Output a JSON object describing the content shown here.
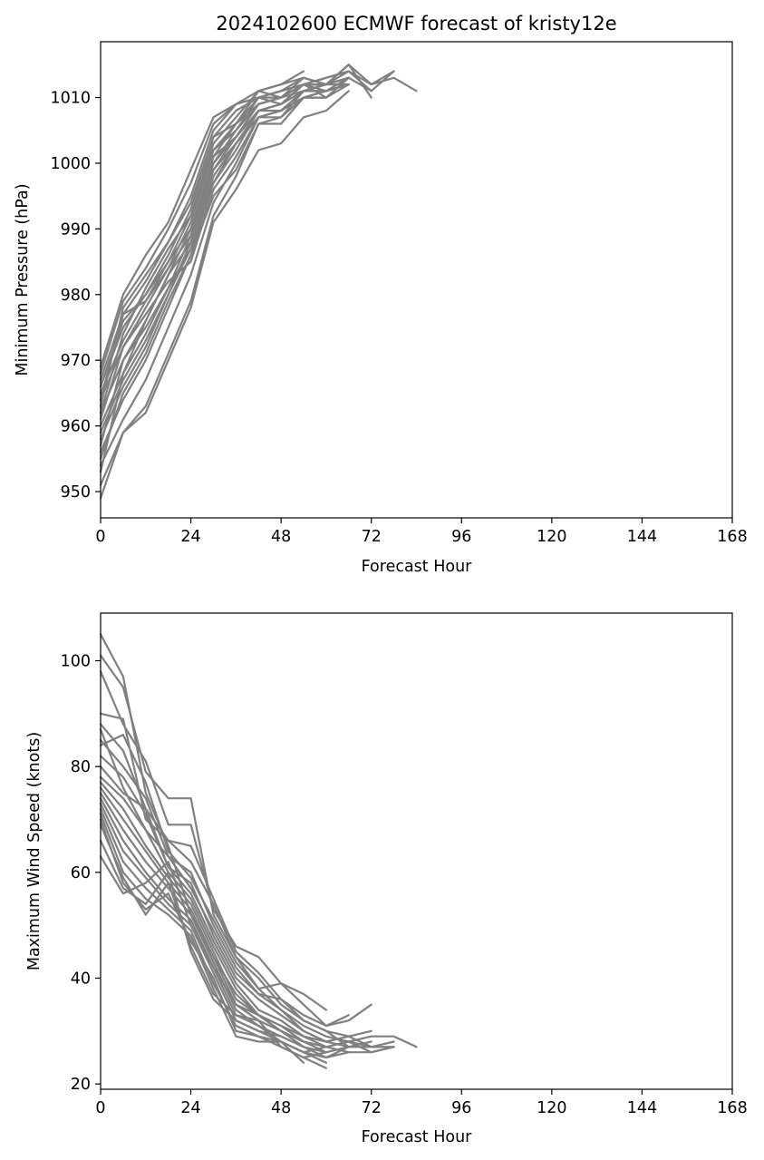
{
  "figure": {
    "title": "2024102600 ECMWF forecast of kristy12e"
  },
  "chart_data": [
    {
      "type": "line",
      "title": "2024102600 ECMWF forecast of kristy12e",
      "xlabel": "Forecast Hour",
      "ylabel": "Minimum Pressure (hPa)",
      "xlim": [
        0,
        168
      ],
      "ylim": [
        946,
        1018.5
      ],
      "xticks": [
        0,
        24,
        48,
        72,
        96,
        120,
        144,
        168
      ],
      "yticks": [
        950,
        960,
        970,
        980,
        990,
        1000,
        1010
      ],
      "grid": false,
      "legend": "none",
      "line_color": "#808080",
      "x": [
        0,
        6,
        12,
        18,
        24,
        30,
        36,
        42,
        48,
        54,
        60,
        66,
        72,
        78,
        84
      ],
      "series": [
        {
          "values": [
            949,
            959,
            962,
            970,
            978,
            991,
            996,
            1002,
            1003,
            1007,
            1008,
            1011,
            null,
            null,
            null
          ]
        },
        {
          "values": [
            951,
            959,
            963,
            971,
            979,
            992,
            998,
            1006,
            1006,
            1010,
            1010,
            1013,
            1011,
            1014,
            null
          ]
        },
        {
          "values": [
            954,
            961,
            967,
            975,
            983,
            994,
            1000,
            1007,
            1008,
            1011,
            1012,
            1014,
            1012,
            1013,
            1011
          ]
        },
        {
          "values": [
            956,
            964,
            970,
            978,
            986,
            997,
            1002,
            1008,
            1009,
            1012,
            1012,
            1015,
            1012,
            1014,
            null
          ]
        },
        {
          "values": [
            958,
            966,
            972,
            980,
            988,
            999,
            1004,
            1009,
            1010,
            1012,
            1013,
            1014,
            1011,
            null,
            null
          ]
        },
        {
          "values": [
            960,
            968,
            974,
            981,
            989,
            1000,
            1005,
            1010,
            1011,
            1013,
            1012,
            1015,
            1010,
            null,
            null
          ]
        },
        {
          "values": [
            962,
            970,
            976,
            983,
            990,
            1001,
            1006,
            1010,
            1011,
            1012,
            1013,
            1014,
            null,
            null,
            null
          ]
        },
        {
          "values": [
            964,
            972,
            978,
            984,
            991,
            1002,
            1006,
            1011,
            1012,
            1013,
            1012,
            1013,
            null,
            null,
            null
          ]
        },
        {
          "values": [
            965,
            973,
            979,
            985,
            992,
            1003,
            1007,
            1011,
            1012,
            1014,
            null,
            null,
            null,
            null,
            null
          ]
        },
        {
          "values": [
            966,
            975,
            980,
            986,
            993,
            1004,
            1008,
            1010,
            1011,
            1012,
            1012,
            1013,
            null,
            null,
            null
          ]
        },
        {
          "values": [
            967,
            977,
            982,
            988,
            995,
            1005,
            1009,
            1010,
            1010,
            1012,
            1011,
            1012,
            null,
            null,
            null
          ]
        },
        {
          "values": [
            968,
            979,
            984,
            990,
            997,
            1006,
            1009,
            1010,
            1009,
            1011,
            1011,
            1012,
            null,
            null,
            null
          ]
        },
        {
          "values": [
            969,
            980,
            986,
            991,
            999,
            1007,
            1009,
            1011,
            1010,
            1012,
            1012,
            1013,
            null,
            null,
            null
          ]
        },
        {
          "values": [
            963,
            978,
            983,
            988,
            994,
            1004,
            1006,
            1009,
            1010,
            1011,
            1011,
            1012,
            null,
            null,
            null
          ]
        },
        {
          "values": [
            957,
            970,
            975,
            981,
            987,
            998,
            1003,
            1008,
            1009,
            1011,
            1012,
            1013,
            null,
            null,
            null
          ]
        },
        {
          "values": [
            961,
            972,
            977,
            982,
            985,
            996,
            1001,
            1007,
            1008,
            1010,
            1011,
            null,
            null,
            null,
            null
          ]
        },
        {
          "values": [
            959,
            967,
            973,
            980,
            987,
            997,
            1003,
            1007,
            1007,
            1010,
            1011,
            1013,
            null,
            null,
            null
          ]
        },
        {
          "values": [
            955,
            965,
            971,
            979,
            986,
            995,
            999,
            1006,
            1007,
            1011,
            1011,
            1012,
            null,
            null,
            null
          ]
        },
        {
          "values": [
            966,
            976,
            980,
            985,
            990,
            1000,
            1004,
            1008,
            1008,
            1011,
            1012,
            1012,
            null,
            null,
            null
          ]
        },
        {
          "values": [
            962,
            974,
            981,
            987,
            992,
            1002,
            1005,
            1009,
            1010,
            1013,
            null,
            null,
            null,
            null,
            null
          ]
        },
        {
          "values": [
            964,
            977,
            979,
            984,
            989,
            1001,
            1004,
            1008,
            1009,
            1012,
            1010,
            null,
            null,
            null,
            null
          ]
        },
        {
          "values": [
            953,
            968,
            976,
            983,
            988,
            999,
            1003,
            1007,
            1008,
            1010,
            1010,
            1012,
            null,
            null,
            null
          ]
        }
      ]
    },
    {
      "type": "line",
      "title": "",
      "xlabel": "Forecast Hour",
      "ylabel": "Maximum Wind Speed (knots)",
      "xlim": [
        0,
        168
      ],
      "ylim": [
        19,
        109
      ],
      "xticks": [
        0,
        24,
        48,
        72,
        96,
        120,
        144,
        168
      ],
      "yticks": [
        20,
        40,
        60,
        80,
        100
      ],
      "grid": false,
      "legend": "none",
      "line_color": "#808080",
      "x": [
        0,
        6,
        12,
        18,
        24,
        30,
        36,
        42,
        48,
        54,
        60,
        66,
        72,
        78,
        84
      ],
      "series": [
        {
          "values": [
            105,
            97,
            75,
            65,
            52,
            44,
            37,
            33,
            30,
            28,
            27,
            28,
            29,
            29,
            27
          ]
        },
        {
          "values": [
            101,
            95,
            79,
            74,
            74,
            52,
            44,
            40,
            35,
            32,
            30,
            29,
            30,
            null,
            null
          ]
        },
        {
          "values": [
            98,
            88,
            81,
            69,
            69,
            53,
            46,
            44,
            39,
            37,
            34,
            null,
            null,
            null,
            null
          ]
        },
        {
          "values": [
            90,
            89,
            70,
            66,
            65,
            55,
            45,
            41,
            36,
            33,
            31,
            33,
            null,
            null,
            null
          ]
        },
        {
          "values": [
            88,
            83,
            72,
            66,
            62,
            54,
            44,
            38,
            39,
            35,
            31,
            32,
            35,
            null,
            null
          ]
        },
        {
          "values": [
            87,
            76,
            68,
            63,
            60,
            50,
            42,
            37,
            36,
            32,
            30,
            27,
            28,
            null,
            null
          ]
        },
        {
          "values": [
            85,
            80,
            74,
            63,
            57,
            49,
            41,
            37,
            34,
            31,
            29,
            28,
            27,
            27,
            null
          ]
        },
        {
          "values": [
            82,
            78,
            71,
            61,
            58,
            48,
            40,
            36,
            33,
            30,
            28,
            29,
            27,
            28,
            null
          ]
        },
        {
          "values": [
            80,
            75,
            72,
            61,
            56,
            47,
            39,
            34,
            32,
            29,
            27,
            28,
            26,
            27,
            null
          ]
        },
        {
          "values": [
            78,
            74,
            68,
            60,
            55,
            46,
            38,
            33,
            31,
            28,
            26,
            27,
            27,
            27,
            null
          ]
        },
        {
          "values": [
            77,
            72,
            65,
            59,
            54,
            45,
            36,
            33,
            30,
            28,
            27,
            26,
            26,
            27,
            null
          ]
        },
        {
          "values": [
            76,
            70,
            64,
            58,
            53,
            44,
            35,
            32,
            30,
            27,
            26,
            27,
            null,
            null,
            null
          ]
        },
        {
          "values": [
            75,
            68,
            62,
            57,
            52,
            43,
            34,
            31,
            29,
            27,
            25,
            27,
            null,
            null,
            null
          ]
        },
        {
          "values": [
            74,
            66,
            60,
            55,
            51,
            42,
            33,
            31,
            28,
            26,
            24,
            null,
            null,
            null,
            null
          ]
        },
        {
          "values": [
            73,
            64,
            59,
            54,
            50,
            41,
            32,
            30,
            28,
            26,
            25,
            26,
            null,
            null,
            null
          ]
        },
        {
          "values": [
            72,
            62,
            57,
            53,
            49,
            39,
            31,
            29,
            27,
            25,
            23,
            null,
            null,
            null,
            null
          ]
        },
        {
          "values": [
            71,
            60,
            55,
            52,
            48,
            38,
            29,
            28,
            28,
            26,
            27,
            null,
            null,
            null,
            null
          ]
        },
        {
          "values": [
            70,
            58,
            53,
            56,
            47,
            40,
            30,
            29,
            28,
            24,
            null,
            null,
            null,
            null,
            null
          ]
        },
        {
          "values": [
            69,
            59,
            52,
            58,
            46,
            37,
            33,
            32,
            27,
            25,
            26,
            null,
            null,
            null,
            null
          ]
        },
        {
          "values": [
            66,
            57,
            54,
            60,
            45,
            36,
            32,
            30,
            29,
            27,
            null,
            null,
            null,
            null,
            null
          ]
        },
        {
          "values": [
            63,
            56,
            58,
            62,
            50,
            42,
            35,
            33,
            31,
            29,
            28,
            null,
            null,
            null,
            null
          ]
        },
        {
          "values": [
            84,
            86,
            77,
            64,
            59,
            51,
            43,
            38,
            34,
            30,
            28,
            27,
            null,
            null,
            null
          ]
        }
      ]
    }
  ]
}
